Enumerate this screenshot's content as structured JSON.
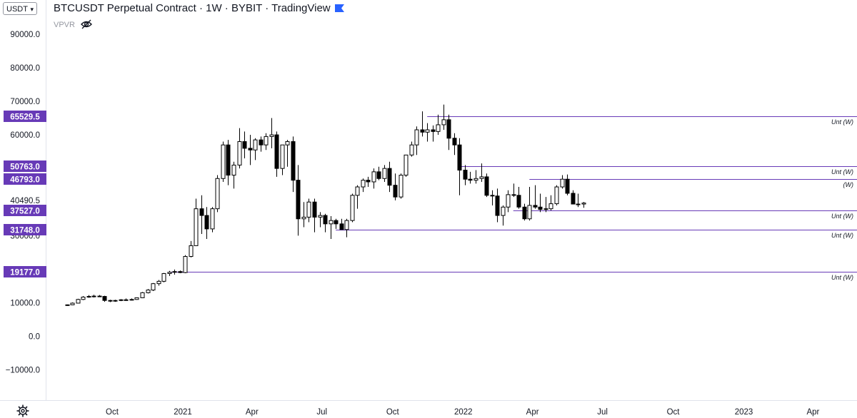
{
  "header": {
    "currency": "USDT",
    "title": "BTCUSDT Perpetual Contract · 1W · BYBIT · TradingView",
    "indicator": "VPVR"
  },
  "icons": {
    "currency_dropdown": "chevron-down-icon",
    "flag": "flag-icon",
    "indicator_visibility": "eye-slash-icon",
    "settings": "gear-icon"
  },
  "colors": {
    "level_line": "#673ab7",
    "level_label_bg": "#673ab7",
    "up_candle": "#ffffff",
    "down_candle": "#000000",
    "flag": "#2962ff"
  },
  "chart_data": {
    "type": "candlestick",
    "title": "BTCUSDT Perpetual Contract · 1W · BYBIT · TradingView",
    "x_axis_labels": [
      "Oct",
      "2021",
      "Apr",
      "Jul",
      "Oct",
      "2022",
      "Apr",
      "Jul",
      "Oct",
      "2023",
      "Apr"
    ],
    "y_axis_labels": [
      "90000.0",
      "80000.0",
      "70000.0",
      "60000.0",
      "10000.0",
      "0.0",
      "−10000.0"
    ],
    "ylim": [
      -14000,
      95000
    ],
    "price_labels": [
      "40490.5",
      "30000.0"
    ],
    "levels": [
      {
        "price": 65529.5,
        "label": "65529.5",
        "tag": "Unt (W)"
      },
      {
        "price": 50763.0,
        "label": "50763.0",
        "tag": "Unt (W)"
      },
      {
        "price": 46793.0,
        "label": "46793.0",
        "tag": "(W)"
      },
      {
        "price": 37527.0,
        "label": "37527.0",
        "tag": "Unt (W)"
      },
      {
        "price": 31748.0,
        "label": "31748.0",
        "tag": "Unt (W)"
      },
      {
        "price": 19177.0,
        "label": "19177.0",
        "tag": "Unt (W)"
      }
    ],
    "candle_start": "2020-08-03",
    "candle_interval_days": 7,
    "candles": [
      [
        9200,
        9500,
        9100,
        9400
      ],
      [
        9400,
        10100,
        9300,
        9900
      ],
      [
        9900,
        11200,
        9800,
        11000
      ],
      [
        11000,
        12000,
        10800,
        11700
      ],
      [
        11700,
        12300,
        11500,
        11900
      ],
      [
        11900,
        12400,
        11600,
        12000
      ],
      [
        12000,
        12300,
        11700,
        11900
      ],
      [
        11900,
        12100,
        10300,
        10700
      ],
      [
        10700,
        10900,
        10200,
        10500
      ],
      [
        10500,
        10900,
        10300,
        10700
      ],
      [
        10700,
        11100,
        10500,
        10900
      ],
      [
        10900,
        11300,
        10600,
        10800
      ],
      [
        10800,
        11300,
        10700,
        11000
      ],
      [
        11000,
        11600,
        10900,
        11500
      ],
      [
        11500,
        13200,
        11400,
        13000
      ],
      [
        13000,
        14100,
        12800,
        13800
      ],
      [
        13800,
        15900,
        13500,
        15700
      ],
      [
        15700,
        16800,
        15100,
        16400
      ],
      [
        16400,
        18900,
        16100,
        18700
      ],
      [
        18700,
        19500,
        18000,
        19100
      ],
      [
        19100,
        19900,
        18400,
        19300
      ],
      [
        19300,
        19600,
        18800,
        19000
      ],
      [
        19000,
        24200,
        18800,
        23800
      ],
      [
        23800,
        28400,
        23500,
        27000
      ],
      [
        27000,
        41000,
        27000,
        38000
      ],
      [
        38000,
        42000,
        30500,
        36000
      ],
      [
        36000,
        38500,
        29000,
        32000
      ],
      [
        32000,
        38500,
        31000,
        38000
      ],
      [
        38000,
        48000,
        37000,
        47000
      ],
      [
        47000,
        58000,
        46000,
        57000
      ],
      [
        57000,
        58500,
        45000,
        48000
      ],
      [
        48000,
        52000,
        44000,
        51000
      ],
      [
        51000,
        62000,
        50000,
        58000
      ],
      [
        58000,
        61000,
        53000,
        56000
      ],
      [
        56000,
        60000,
        51000,
        55500
      ],
      [
        55500,
        59000,
        52500,
        58500
      ],
      [
        58500,
        59500,
        55000,
        57000
      ],
      [
        57000,
        60500,
        55500,
        59500
      ],
      [
        59500,
        65000,
        56000,
        60000
      ],
      [
        60000,
        61000,
        47500,
        50000
      ],
      [
        50000,
        57000,
        48000,
        57000
      ],
      [
        57000,
        58500,
        50500,
        58000
      ],
      [
        58000,
        59500,
        43000,
        46500
      ],
      [
        46500,
        51000,
        30000,
        35000
      ],
      [
        35000,
        40000,
        32500,
        35500
      ],
      [
        35500,
        41000,
        34000,
        40000
      ],
      [
        40000,
        41000,
        31000,
        35500
      ],
      [
        35500,
        37000,
        32500,
        36000
      ],
      [
        36000,
        36500,
        31000,
        33500
      ],
      [
        33500,
        35800,
        29000,
        34500
      ],
      [
        34500,
        35000,
        32000,
        33500
      ],
      [
        33500,
        35000,
        32800,
        31800
      ],
      [
        31800,
        35000,
        29500,
        34500
      ],
      [
        34500,
        42500,
        34000,
        42000
      ],
      [
        42000,
        45000,
        38000,
        44500
      ],
      [
        44500,
        47000,
        43000,
        46500
      ],
      [
        46500,
        47500,
        44500,
        46000
      ],
      [
        46000,
        50000,
        44000,
        49000
      ],
      [
        49000,
        50500,
        46500,
        47000
      ],
      [
        47000,
        51000,
        46000,
        50000
      ],
      [
        50000,
        52000,
        43000,
        45000
      ],
      [
        45000,
        48500,
        40500,
        41500
      ],
      [
        41500,
        48500,
        41000,
        48000
      ],
      [
        48000,
        54000,
        47500,
        54000
      ],
      [
        54000,
        58000,
        53500,
        57000
      ],
      [
        57000,
        62500,
        54000,
        61500
      ],
      [
        61500,
        67000,
        59500,
        60800
      ],
      [
        60800,
        63500,
        58000,
        61500
      ],
      [
        61500,
        62800,
        58000,
        61000
      ],
      [
        61000,
        66000,
        60000,
        63000
      ],
      [
        63000,
        69000,
        61500,
        64500
      ],
      [
        64500,
        66000,
        55500,
        59000
      ],
      [
        59000,
        60500,
        54000,
        57000
      ],
      [
        57000,
        59000,
        42000,
        49500
      ],
      [
        49500,
        51000,
        45000,
        46800
      ],
      [
        46800,
        49000,
        45500,
        46500
      ],
      [
        46500,
        49500,
        45500,
        47000
      ],
      [
        47000,
        51500,
        46000,
        47500
      ],
      [
        47500,
        48500,
        41500,
        42000
      ],
      [
        42000,
        43500,
        39000,
        41800
      ],
      [
        41800,
        44000,
        34000,
        36000
      ],
      [
        36000,
        39000,
        33000,
        38500
      ],
      [
        38500,
        43500,
        37000,
        42200
      ],
      [
        42200,
        45500,
        41500,
        42000
      ],
      [
        42000,
        44500,
        38000,
        38500
      ],
      [
        38500,
        39500,
        34500,
        35000
      ],
      [
        35000,
        44500,
        34500,
        39000
      ],
      [
        39000,
        45000,
        38000,
        38500
      ],
      [
        38500,
        42500,
        37000,
        37800
      ],
      [
        37800,
        41500,
        37000,
        38000
      ],
      [
        38000,
        42000,
        37500,
        39500
      ],
      [
        39500,
        45000,
        39000,
        44500
      ],
      [
        44500,
        48000,
        44000,
        46800
      ],
      [
        46800,
        48200,
        42000,
        42600
      ],
      [
        42600,
        43500,
        39500,
        39400
      ],
      [
        39400,
        42500,
        38500,
        39400
      ],
      [
        39400,
        40000,
        38300,
        39700
      ]
    ]
  }
}
